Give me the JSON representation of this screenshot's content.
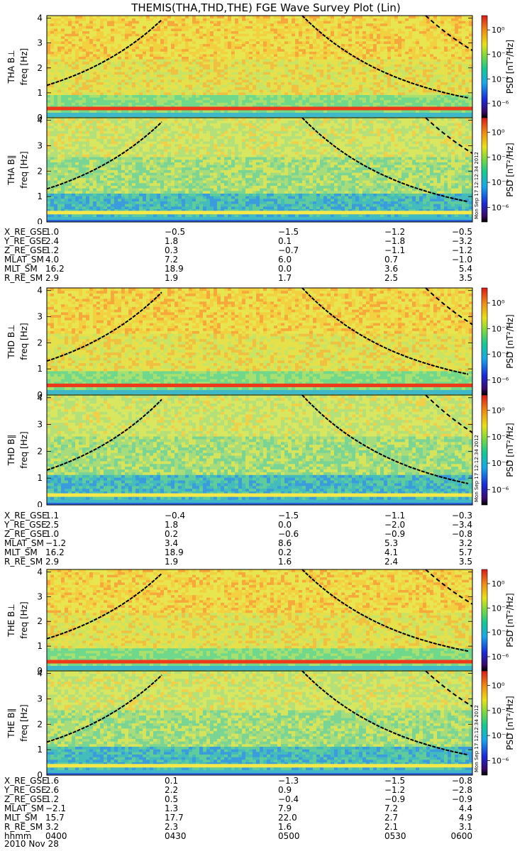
{
  "title": "THEMIS(THA,THD,THE) FGE Wave Survey Plot (Lin)",
  "footer_date": "2010 Nov 28",
  "colorbar": {
    "label": "PSD [nT²/Hz]",
    "ticks": [
      "10⁰",
      "10⁻²",
      "10⁻⁴",
      "10⁻⁶"
    ]
  },
  "stamp": "Mon Sep 17 12:12:34 2012",
  "time_axis_label": "hhmm",
  "time_ticks": [
    "0400",
    "0430",
    "0500",
    "0530",
    "0600"
  ],
  "ephem_labels": [
    "X_RE_GSE",
    "Y_RE_GSE",
    "Z_RE_GSE",
    "MLAT_SM",
    "MLT_SM",
    "R_RE_SM"
  ],
  "chart_data": [
    {
      "type": "heatmap",
      "probe": "THA",
      "panels": [
        {
          "ylabel": "THA B⊥",
          "axis_label": "freq [Hz]",
          "yticks": [
            "0",
            "1",
            "2",
            "3",
            "4"
          ],
          "ylim": [
            0,
            4.1
          ]
        },
        {
          "ylabel": "THA B∥",
          "axis_label": "freq [Hz]",
          "yticks": [
            "0",
            "1",
            "2",
            "3",
            "4"
          ],
          "ylim": [
            0,
            4.1
          ]
        }
      ],
      "ephemeris": [
        [
          "1.0",
          "-0.5",
          "-1.5",
          "-1.2",
          "-0.5"
        ],
        [
          "2.4",
          "1.8",
          "0.1",
          "-1.8",
          "-3.2"
        ],
        [
          "1.2",
          "0.3",
          "-0.7",
          "-1.1",
          "-1.2"
        ],
        [
          "4.0",
          "7.2",
          "6.0",
          "0.7",
          "-1.0"
        ],
        [
          "16.2",
          "18.9",
          "0.0",
          "3.6",
          "5.4"
        ],
        [
          "2.9",
          "1.9",
          "1.7",
          "2.5",
          "3.5"
        ]
      ]
    },
    {
      "type": "heatmap",
      "probe": "THD",
      "panels": [
        {
          "ylabel": "THD B⊥",
          "axis_label": "freq [Hz]",
          "yticks": [
            "0",
            "1",
            "2",
            "3",
            "4"
          ],
          "ylim": [
            0,
            4.1
          ]
        },
        {
          "ylabel": "THD B∥",
          "axis_label": "freq [Hz]",
          "yticks": [
            "0",
            "1",
            "2",
            "3",
            "4"
          ],
          "ylim": [
            0,
            4.1
          ]
        }
      ],
      "ephemeris": [
        [
          "1.1",
          "-0.4",
          "-1.5",
          "-1.1",
          "-0.3"
        ],
        [
          "2.5",
          "1.8",
          "0.0",
          "-2.0",
          "-3.4"
        ],
        [
          "1.0",
          "0.2",
          "-0.6",
          "-0.9",
          "-0.8"
        ],
        [
          "-1.2",
          "3.4",
          "8.6",
          "5.3",
          "3.2"
        ],
        [
          "16.2",
          "18.9",
          "0.2",
          "4.1",
          "5.7"
        ],
        [
          "2.9",
          "1.9",
          "1.6",
          "2.4",
          "3.5"
        ]
      ]
    },
    {
      "type": "heatmap",
      "probe": "THE",
      "panels": [
        {
          "ylabel": "THE B⊥",
          "axis_label": "freq [Hz]",
          "yticks": [
            "0",
            "1",
            "2",
            "3",
            "4"
          ],
          "ylim": [
            0,
            4.1
          ]
        },
        {
          "ylabel": "THE B∥",
          "axis_label": "freq [Hz]",
          "yticks": [
            "0",
            "1",
            "2",
            "3",
            "4"
          ],
          "ylim": [
            0,
            4.1
          ]
        }
      ],
      "ephemeris": [
        [
          "1.6",
          "0.1",
          "-1.3",
          "-1.5",
          "-0.8"
        ],
        [
          "2.6",
          "2.2",
          "0.9",
          "-1.2",
          "-2.8"
        ],
        [
          "1.2",
          "0.5",
          "-0.4",
          "-0.9",
          "-0.9"
        ],
        [
          "-2.1",
          "1.3",
          "7.9",
          "7.2",
          "4.4"
        ],
        [
          "15.7",
          "17.7",
          "22.0",
          "2.7",
          "4.9"
        ],
        [
          "3.2",
          "2.3",
          "1.6",
          "2.1",
          "3.1"
        ]
      ]
    }
  ]
}
